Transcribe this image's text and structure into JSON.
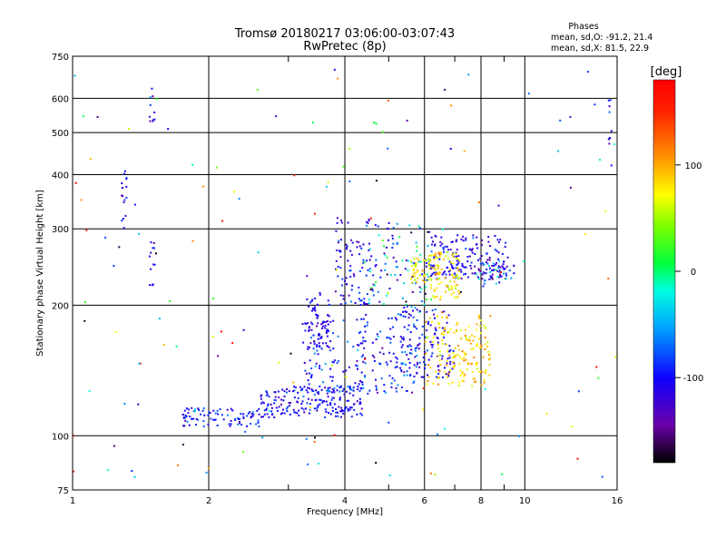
{
  "chart_data": {
    "type": "scatter",
    "title": "Tromsø 20180217 03:06:00-03:07:43",
    "subtitle": "RwPretec (8p)",
    "xlabel": "Frequency [MHz]",
    "ylabel": "Stationary phase Virtual Height [km]",
    "x_scale": "log",
    "y_scale": "log",
    "xlim": [
      1,
      16
    ],
    "ylim": [
      75,
      750
    ],
    "x_ticks": [
      1,
      2,
      4,
      6,
      8,
      10,
      16
    ],
    "x_tick_labels": [
      "1",
      "2",
      "4",
      "6",
      "8",
      "10",
      "16"
    ],
    "x_minor_ticks": [
      3,
      5,
      7,
      9
    ],
    "y_ticks": [
      75,
      100,
      200,
      300,
      400,
      500,
      600,
      750
    ],
    "y_tick_labels": [
      "75",
      "100",
      "200",
      "300",
      "400",
      "500",
      "600",
      "750"
    ],
    "grid": true,
    "phase_info": {
      "heading": "Phases",
      "line_o": "mean, sd,O: -91.2, 21.4",
      "line_x": "mean, sd,X:  81.5, 22.9"
    },
    "colorbar": {
      "label": "[deg]",
      "range": [
        -180,
        180
      ],
      "ticks": [
        100,
        0,
        -100
      ],
      "tick_labels": [
        "100",
        "0",
        "-100"
      ]
    },
    "clusters": [
      {
        "x_from": 1.75,
        "x_to": 2.6,
        "h_from": 105,
        "h_to": 116,
        "phase_mean": -95,
        "phase_sd": 20,
        "count": 90
      },
      {
        "x_from": 2.6,
        "x_to": 4.4,
        "h_from": 110,
        "h_to": 130,
        "phase_mean": -100,
        "phase_sd": 18,
        "count": 200
      },
      {
        "x_from": 3.2,
        "x_to": 5.8,
        "h_from": 125,
        "h_to": 190,
        "phase_mean": -95,
        "phase_sd": 22,
        "count": 220
      },
      {
        "x_from": 3.3,
        "x_to": 3.7,
        "h_from": 160,
        "h_to": 215,
        "phase_mean": -110,
        "phase_sd": 15,
        "count": 60
      },
      {
        "x_from": 3.8,
        "x_to": 4.7,
        "h_from": 200,
        "h_to": 320,
        "phase_mean": -105,
        "phase_sd": 20,
        "count": 90
      },
      {
        "x_from": 4.4,
        "x_to": 6.2,
        "h_from": 190,
        "h_to": 310,
        "phase_mean": -70,
        "phase_sd": 60,
        "count": 110
      },
      {
        "x_from": 5.6,
        "x_to": 6.2,
        "h_from": 225,
        "h_to": 260,
        "phase_mean": 75,
        "phase_sd": 15,
        "count": 45
      },
      {
        "x_from": 6.2,
        "x_to": 9.2,
        "h_from": 230,
        "h_to": 290,
        "phase_mean": -110,
        "phase_sd": 18,
        "count": 170
      },
      {
        "x_from": 6.2,
        "x_to": 7.2,
        "h_from": 205,
        "h_to": 265,
        "phase_mean": 80,
        "phase_sd": 18,
        "count": 90
      },
      {
        "x_from": 5.3,
        "x_to": 7.0,
        "h_from": 135,
        "h_to": 200,
        "phase_mean": -105,
        "phase_sd": 18,
        "count": 110
      },
      {
        "x_from": 6.0,
        "x_to": 8.4,
        "h_from": 130,
        "h_to": 190,
        "phase_mean": 85,
        "phase_sd": 18,
        "count": 170
      },
      {
        "x_from": 7.8,
        "x_to": 9.5,
        "h_from": 220,
        "h_to": 250,
        "phase_mean": -80,
        "phase_sd": 45,
        "count": 40
      },
      {
        "x_from": 1.28,
        "x_to": 1.32,
        "h_from": 300,
        "h_to": 410,
        "phase_mean": -105,
        "phase_sd": 20,
        "count": 16
      },
      {
        "x_from": 1.48,
        "x_to": 1.52,
        "h_from": 215,
        "h_to": 280,
        "phase_mean": -110,
        "phase_sd": 25,
        "count": 12
      },
      {
        "x_from": 1.48,
        "x_to": 1.52,
        "h_from": 530,
        "h_to": 640,
        "phase_mean": -120,
        "phase_sd": 20,
        "count": 10
      },
      {
        "x_from": 15.3,
        "x_to": 15.6,
        "h_from": 420,
        "h_to": 610,
        "phase_mean": -100,
        "phase_sd": 30,
        "count": 10
      },
      {
        "x_from": 1.0,
        "x_to": 16.0,
        "h_from": 78,
        "h_to": 700,
        "phase_mean": 0,
        "phase_sd": 110,
        "count": 140
      }
    ]
  }
}
